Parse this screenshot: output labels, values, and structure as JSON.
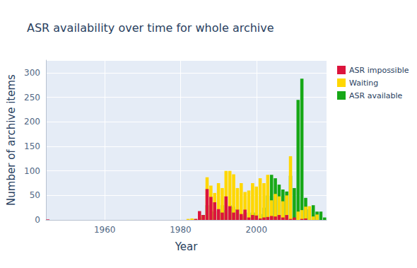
{
  "chart_data": {
    "type": "bar",
    "title": "ASR availability over time for whole archive",
    "x_label": "Year",
    "y_label": "Number of archive items",
    "stacked": true,
    "grid": true,
    "legend": "top-right",
    "x": [
      1945,
      1980,
      1981,
      1982,
      1983,
      1984,
      1985,
      1986,
      1987,
      1988,
      1989,
      1990,
      1991,
      1992,
      1993,
      1994,
      1995,
      1996,
      1997,
      1998,
      1999,
      2000,
      2001,
      2002,
      2003,
      2004,
      2005,
      2006,
      2007,
      2008,
      2009,
      2010,
      2011,
      2012,
      2013,
      2014,
      2015,
      2016,
      2017,
      2018
    ],
    "series": [
      {
        "name": "ASR available",
        "color": "#17a817",
        "values": [
          0,
          0,
          0,
          0,
          0,
          1,
          5,
          10,
          30,
          18,
          17,
          18,
          30,
          20,
          30,
          27,
          22,
          8,
          15,
          15,
          15,
          15,
          12,
          25,
          50,
          92,
          85,
          72,
          62,
          58,
          90,
          65,
          245,
          288,
          45,
          22,
          30,
          17,
          17,
          5
        ]
      },
      {
        "name": "Waiting",
        "color": "#ffd700",
        "values": [
          0,
          0,
          0,
          2,
          3,
          2,
          10,
          8,
          87,
          70,
          55,
          75,
          65,
          100,
          100,
          93,
          65,
          75,
          57,
          60,
          75,
          68,
          85,
          75,
          92,
          40,
          53,
          48,
          38,
          50,
          130,
          0,
          17,
          20,
          27,
          28,
          7,
          11,
          0,
          0
        ]
      },
      {
        "name": "ASR impossible",
        "color": "#dc143c",
        "values": [
          1,
          0,
          0,
          0,
          0,
          2,
          18,
          10,
          63,
          47,
          36,
          22,
          15,
          48,
          28,
          15,
          21,
          12,
          21,
          5,
          10,
          9,
          3,
          5,
          6,
          8,
          7,
          10,
          5,
          10,
          2,
          5,
          0,
          2,
          3,
          0,
          0,
          0,
          0,
          0
        ]
      }
    ],
    "xlim": [
      1944.5,
      2018.5
    ],
    "xticks": [
      1960,
      1980,
      2000
    ],
    "ylim": [
      0,
      326
    ],
    "yticks": [
      0,
      50,
      100,
      150,
      200,
      250,
      300
    ]
  }
}
